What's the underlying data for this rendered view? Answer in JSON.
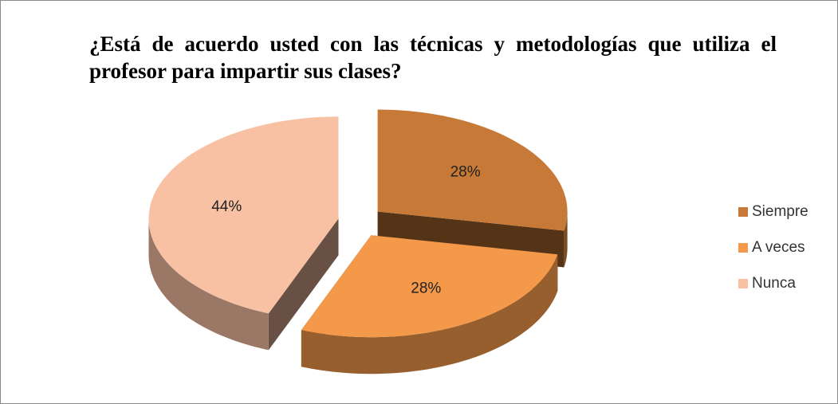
{
  "chart_data": {
    "type": "pie",
    "title": "¿Está de acuerdo usted con las técnicas y metodologías que utiliza el profesor para impartir sus clases?",
    "categories": [
      "Siempre",
      "A veces",
      "Nunca"
    ],
    "values": [
      28,
      28,
      44
    ],
    "value_labels": [
      "28%",
      "28%",
      "44%"
    ],
    "colors": [
      "#c77a37",
      "#f39949",
      "#f8c1a3"
    ],
    "legend": "right"
  }
}
